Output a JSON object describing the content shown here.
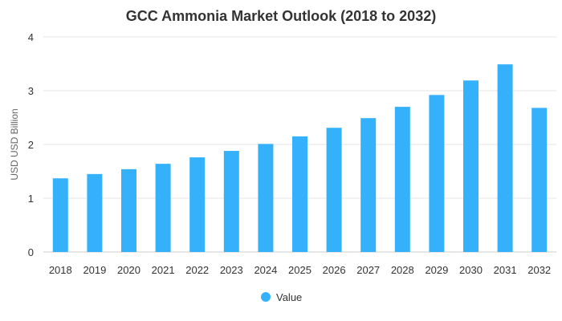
{
  "chart_data": {
    "type": "bar",
    "title": "GCC Ammonia Market Outlook (2018 to 2032)",
    "xlabel": "",
    "ylabel": "USD USD Billion",
    "categories": [
      "2018",
      "2019",
      "2020",
      "2021",
      "2022",
      "2023",
      "2024",
      "2025",
      "2026",
      "2027",
      "2028",
      "2029",
      "2030",
      "2031",
      "2032"
    ],
    "series": [
      {
        "name": "Value",
        "color": "#35b1fb",
        "values": [
          1.37,
          1.45,
          1.54,
          1.64,
          1.76,
          1.88,
          2.01,
          2.15,
          2.31,
          2.49,
          2.7,
          2.92,
          3.19,
          3.49,
          2.68
        ]
      }
    ],
    "ylim": [
      0,
      4
    ],
    "yticks": [
      "0",
      "1",
      "2",
      "3",
      "4"
    ],
    "grid": true,
    "legend_position": "bottom-center"
  }
}
